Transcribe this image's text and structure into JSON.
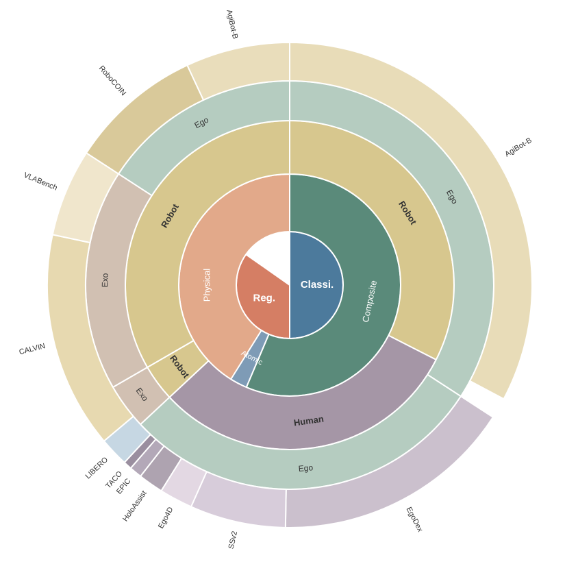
{
  "chart_data": {
    "type": "sunburst",
    "levels": [
      "task",
      "subtype",
      "embodiment",
      "view",
      "dataset"
    ],
    "nodes": [
      {
        "id": "reg",
        "label": "Reg.",
        "level": 0,
        "parent": null,
        "start": 180,
        "end": 305,
        "color": "#D57E64"
      },
      {
        "id": "classi",
        "label": "Classi.",
        "level": 0,
        "parent": null,
        "start": 0,
        "end": 180,
        "color": "#4C7A9C"
      },
      {
        "id": "physical",
        "label": "Physical",
        "level": 1,
        "parent": "reg",
        "start": 180,
        "end": 360,
        "color": "#E2A98A"
      },
      {
        "id": "composite",
        "label": "Composite",
        "level": 1,
        "parent": "classi",
        "start": 0,
        "end": 203,
        "color": "#5A8A7A"
      },
      {
        "id": "atomic",
        "label": "Atomic",
        "level": 1,
        "parent": "classi",
        "start": 203,
        "end": 212,
        "color": "#7E9BB6"
      },
      {
        "id": "robot1",
        "label": "Robot",
        "level": 2,
        "parent": "composite",
        "start": 0,
        "end": 117,
        "color": "#D7C78E"
      },
      {
        "id": "human",
        "label": "Human",
        "level": 2,
        "parent": "composite",
        "start": 117,
        "end": 227,
        "color": "#A596A6"
      },
      {
        "id": "robot2",
        "label": "Robot",
        "level": 2,
        "parent": "atomic",
        "start": 227,
        "end": 240,
        "color": "#D7C78E"
      },
      {
        "id": "robot3",
        "label": "Robot",
        "level": 2,
        "parent": "physical",
        "start": 240,
        "end": 360,
        "color": "#D7C78E"
      },
      {
        "id": "ego1",
        "label": "Ego",
        "level": 3,
        "parent": "robot1",
        "start": 0,
        "end": 123,
        "color": "#B5CCC0"
      },
      {
        "id": "ego2",
        "label": "Ego",
        "level": 3,
        "parent": "human",
        "start": 123,
        "end": 227,
        "color": "#B5CCC0"
      },
      {
        "id": "exo1",
        "label": "Exo",
        "level": 3,
        "parent": "robot2",
        "start": 227,
        "end": 240,
        "color": "#D1C0B2"
      },
      {
        "id": "exo2",
        "label": "Exo",
        "level": 3,
        "parent": "robot3",
        "start": 240,
        "end": 303,
        "color": "#D1C0B2"
      },
      {
        "id": "ego3",
        "label": "Ego",
        "level": 3,
        "parent": "robot3",
        "start": 303,
        "end": 360,
        "color": "#B5CCC0"
      },
      {
        "id": "agibot_b_r",
        "label": "AgiBot-B",
        "level": 4,
        "parent": "ego1",
        "start": 0,
        "end": 118,
        "color": "#E8DCB8"
      },
      {
        "id": "egodex",
        "label": "EgoDex",
        "level": 4,
        "parent": "ego2",
        "start": 123,
        "end": 181,
        "color": "#CBC0CD"
      },
      {
        "id": "ssv2",
        "label": "SSv2",
        "level": 4,
        "parent": "ego2",
        "start": 181,
        "end": 204,
        "color": "#D7CCDA"
      },
      {
        "id": "ego4d",
        "label": "Ego4D",
        "level": 4,
        "parent": "ego2",
        "start": 204,
        "end": 212,
        "color": "#E3D8E3"
      },
      {
        "id": "holoassist",
        "label": "HoloAssist",
        "level": 4,
        "parent": "ego2",
        "start": 212,
        "end": 218,
        "color": "#AEA3B0"
      },
      {
        "id": "epic",
        "label": "EPIC",
        "level": 4,
        "parent": "ego2",
        "start": 218,
        "end": 221,
        "color": "#B3A8B8"
      },
      {
        "id": "taco",
        "label": "TACO",
        "level": 4,
        "parent": "ego2",
        "start": 221,
        "end": 223,
        "color": "#9A8E9F"
      },
      {
        "id": "libero",
        "label": "LIBERO",
        "level": 4,
        "parent": "exo1",
        "start": 223,
        "end": 230,
        "color": "#C6D7E3"
      },
      {
        "id": "calvin",
        "label": "CALVIN",
        "level": 4,
        "parent": "exo2",
        "start": 230,
        "end": 282,
        "color": "#E7D9B0"
      },
      {
        "id": "vlabench",
        "label": "VLABench",
        "level": 4,
        "parent": "exo2",
        "start": 282,
        "end": 303,
        "color": "#F0E6CC"
      },
      {
        "id": "robocoin",
        "label": "RoboCOIN",
        "level": 4,
        "parent": "ego3",
        "start": 303,
        "end": 335,
        "color": "#D9C99A"
      },
      {
        "id": "agibot_b_t",
        "label": "AgiBot-B",
        "level": 4,
        "parent": "ego3",
        "start": 335,
        "end": 360,
        "color": "#E9DDBB"
      }
    ]
  }
}
